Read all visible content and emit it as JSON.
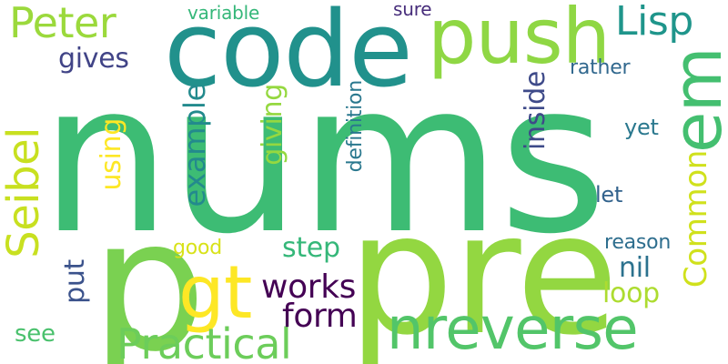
{
  "words": [
    {
      "id": "nums",
      "text": "nums",
      "color": "#3dbc74",
      "rotated": false
    },
    {
      "id": "pre",
      "text": "pre",
      "color": "#93d741",
      "rotated": false
    },
    {
      "id": "p",
      "text": "p",
      "color": "#7ad151",
      "rotated": false
    },
    {
      "id": "code",
      "text": "code",
      "color": "#21918c",
      "rotated": false
    },
    {
      "id": "push",
      "text": "push",
      "color": "#8fd744",
      "rotated": false
    },
    {
      "id": "em",
      "text": "em",
      "color": "#44bf70",
      "rotated": true
    },
    {
      "id": "nreverse",
      "text": "nreverse",
      "color": "#52c569",
      "rotated": false
    },
    {
      "id": "gt",
      "text": "gt",
      "color": "#fde725",
      "rotated": false
    },
    {
      "id": "Peter",
      "text": "Peter",
      "color": "#9bd93c",
      "rotated": false
    },
    {
      "id": "Lisp",
      "text": "Lisp",
      "color": "#1f958b",
      "rotated": false
    },
    {
      "id": "Practical",
      "text": "Practical",
      "color": "#6ccd5a",
      "rotated": false
    },
    {
      "id": "Seibel",
      "text": "Seibel",
      "color": "#c8e020",
      "rotated": true
    },
    {
      "id": "Common",
      "text": "Common",
      "color": "#d0e11c",
      "rotated": true
    },
    {
      "id": "example",
      "text": "example",
      "color": "#238a8d",
      "rotated": true
    },
    {
      "id": "works",
      "text": "works",
      "color": "#440154",
      "rotated": false
    },
    {
      "id": "form",
      "text": "form",
      "color": "#440154",
      "rotated": false
    },
    {
      "id": "gives",
      "text": "gives",
      "color": "#414487",
      "rotated": false
    },
    {
      "id": "giving",
      "text": "giving",
      "color": "#95d840",
      "rotated": true
    },
    {
      "id": "inside",
      "text": "inside",
      "color": "#3e4a89",
      "rotated": true
    },
    {
      "id": "step",
      "text": "step",
      "color": "#35b779",
      "rotated": false
    },
    {
      "id": "nil",
      "text": "nil",
      "color": "#2c728e",
      "rotated": false
    },
    {
      "id": "loop",
      "text": "loop",
      "color": "#addc30",
      "rotated": false
    },
    {
      "id": "using",
      "text": "using",
      "color": "#fde725",
      "rotated": true
    },
    {
      "id": "put",
      "text": "put",
      "color": "#3b528b",
      "rotated": true
    },
    {
      "id": "see",
      "text": "see",
      "color": "#4ac16d",
      "rotated": false
    },
    {
      "id": "definition",
      "text": "definition",
      "color": "#2a788e",
      "rotated": true
    },
    {
      "id": "variable",
      "text": "variable",
      "color": "#35b779",
      "rotated": false
    },
    {
      "id": "sure",
      "text": "sure",
      "color": "#472d7b",
      "rotated": false
    },
    {
      "id": "rather",
      "text": "rather",
      "color": "#31688e",
      "rotated": false
    },
    {
      "id": "yet",
      "text": "yet",
      "color": "#2a788e",
      "rotated": false
    },
    {
      "id": "let",
      "text": "let",
      "color": "#33638d",
      "rotated": false
    },
    {
      "id": "reason",
      "text": "reason",
      "color": "#2e6e8e",
      "rotated": false
    },
    {
      "id": "good",
      "text": "good",
      "color": "#d8e219",
      "rotated": false
    }
  ]
}
